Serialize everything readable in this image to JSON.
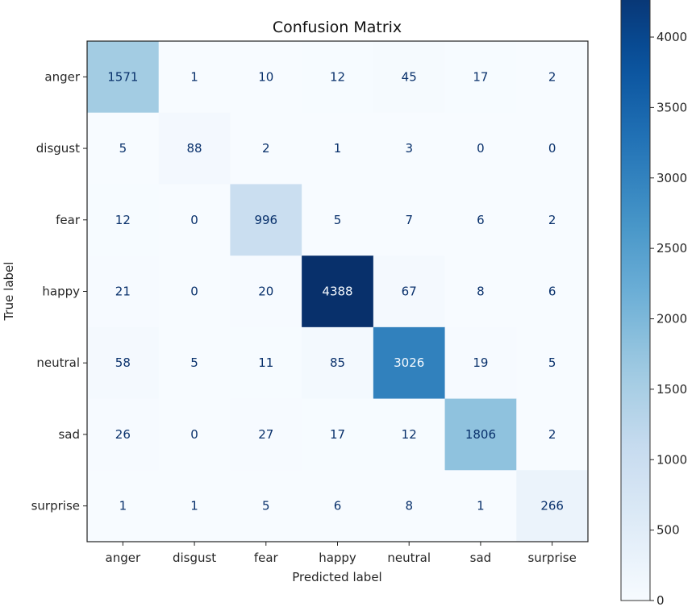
{
  "chart_data": {
    "type": "heatmap",
    "title": "Confusion Matrix",
    "xlabel": "Predicted label",
    "ylabel": "True label",
    "x_categories": [
      "anger",
      "disgust",
      "fear",
      "happy",
      "neutral",
      "sad",
      "surprise"
    ],
    "y_categories": [
      "anger",
      "disgust",
      "fear",
      "happy",
      "neutral",
      "sad",
      "surprise"
    ],
    "values": [
      [
        1571,
        1,
        10,
        12,
        45,
        17,
        2
      ],
      [
        5,
        88,
        2,
        1,
        3,
        0,
        0
      ],
      [
        12,
        0,
        996,
        5,
        7,
        6,
        2
      ],
      [
        21,
        0,
        20,
        4388,
        67,
        8,
        6
      ],
      [
        58,
        5,
        11,
        85,
        3026,
        19,
        5
      ],
      [
        26,
        0,
        27,
        17,
        12,
        1806,
        2
      ],
      [
        1,
        1,
        5,
        6,
        8,
        1,
        266
      ]
    ],
    "colormap": "Blues",
    "colorbar": {
      "ticks": [
        0,
        500,
        1000,
        1500,
        2000,
        2500,
        3000,
        3500,
        4000
      ],
      "range": [
        0,
        4388
      ]
    }
  }
}
